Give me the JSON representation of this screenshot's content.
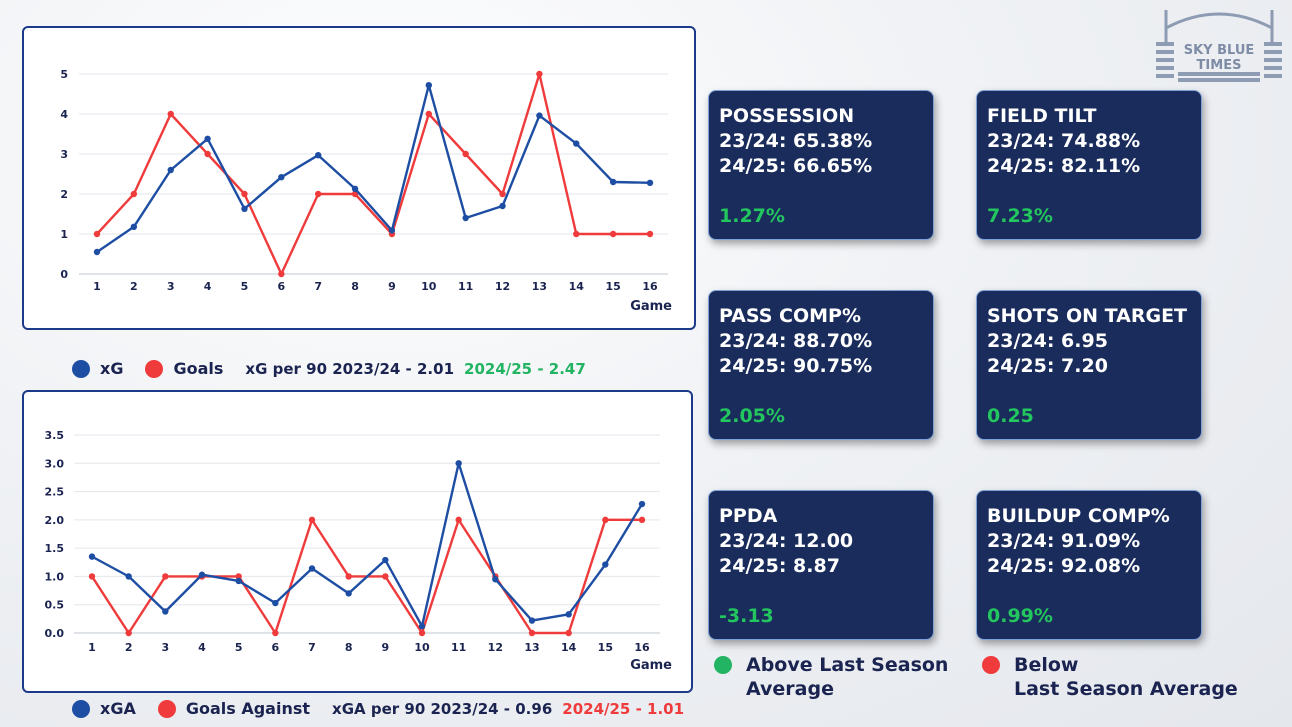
{
  "chart_data": [
    {
      "type": "line",
      "title": "",
      "xlabel": "Game",
      "ylabel": "",
      "x": [
        1,
        2,
        3,
        4,
        5,
        6,
        7,
        8,
        9,
        10,
        11,
        12,
        13,
        14,
        15,
        16
      ],
      "ylim": [
        0,
        5
      ],
      "yticks": [
        "0",
        "1",
        "2",
        "3",
        "4",
        "5"
      ],
      "grid": true,
      "series": [
        {
          "name": "xG",
          "color": "#1e4ea3",
          "values": [
            0.55,
            1.18,
            2.6,
            3.38,
            1.63,
            2.42,
            2.97,
            2.13,
            1.09,
            4.72,
            1.4,
            1.7,
            3.96,
            3.26,
            2.3,
            2.28
          ]
        },
        {
          "name": "Goals",
          "color": "#ef3b3b",
          "values": [
            1,
            2,
            4,
            3,
            2,
            0,
            2,
            2,
            1,
            4,
            3,
            2,
            5,
            1,
            1,
            1
          ]
        }
      ]
    },
    {
      "type": "line",
      "title": "",
      "xlabel": "Game",
      "ylabel": "",
      "x": [
        1,
        2,
        3,
        4,
        5,
        6,
        7,
        8,
        9,
        10,
        11,
        12,
        13,
        14,
        15,
        16
      ],
      "ylim": [
        0,
        3.5
      ],
      "yticks": [
        "0.0",
        "0.5",
        "1.0",
        "1.5",
        "2.0",
        "2.5",
        "3.0",
        "3.5"
      ],
      "grid": true,
      "series": [
        {
          "name": "xGA",
          "color": "#1e4ea3",
          "values": [
            1.35,
            1.0,
            0.38,
            1.03,
            0.92,
            0.53,
            1.14,
            0.7,
            1.29,
            0.12,
            3.0,
            0.95,
            0.22,
            0.33,
            1.21,
            2.28
          ]
        },
        {
          "name": "Goals Against",
          "color": "#ef3b3b",
          "values": [
            1,
            0,
            1,
            1,
            1,
            0,
            2,
            1,
            1,
            0,
            2,
            1,
            0,
            0,
            2,
            2
          ]
        }
      ]
    }
  ],
  "legend1": {
    "xg_label": "xG",
    "goals_label": "Goals",
    "summary": "xG per 90 2023/24 - 2.01",
    "current": "2024/25 - 2.47",
    "current_color": "#22b462"
  },
  "legend2": {
    "xga_label": "xGA",
    "goals_label": "Goals Against",
    "summary": "xGA per 90 2023/24 - 0.96",
    "current": "2024/25 - 1.01",
    "current_color": "#ef3b3b"
  },
  "cards": [
    {
      "title": "POSSESSION",
      "line1": "23/24: 65.38%",
      "line2": "24/25: 66.65%",
      "delta": "1.27%"
    },
    {
      "title": "FIELD TILT",
      "line1": "23/24: 74.88%",
      "line2": "24/25: 82.11%",
      "delta": "7.23%"
    },
    {
      "title": "PASS COMP%",
      "line1": "23/24: 88.70%",
      "line2": "24/25: 90.75%",
      "delta": "2.05%"
    },
    {
      "title": "SHOTS ON TARGET",
      "line1": "23/24: 6.95",
      "line2": "24/25: 7.20",
      "delta": "0.25"
    },
    {
      "title": "PPDA",
      "line1": "23/24: 12.00",
      "line2": "24/25: 8.87",
      "delta": "-3.13"
    },
    {
      "title": "BUILDUP COMP%",
      "line1": "23/24: 91.09%",
      "line2": "24/25: 92.08%",
      "delta": "0.99%"
    }
  ],
  "key": {
    "above_line1": "Above Last Season",
    "above_line2": "Average",
    "above_color": "#22b462",
    "below_line1": "Below",
    "below_line2": "Last Season Average",
    "below_color": "#ef3b3b"
  },
  "logo": {
    "line1": "SKY BLUE",
    "line2": "TIMES"
  },
  "colors": {
    "navy": "#1a2c5b",
    "blue_series": "#1e4ea3",
    "red_series": "#ef3b3b",
    "green": "#22b462"
  }
}
